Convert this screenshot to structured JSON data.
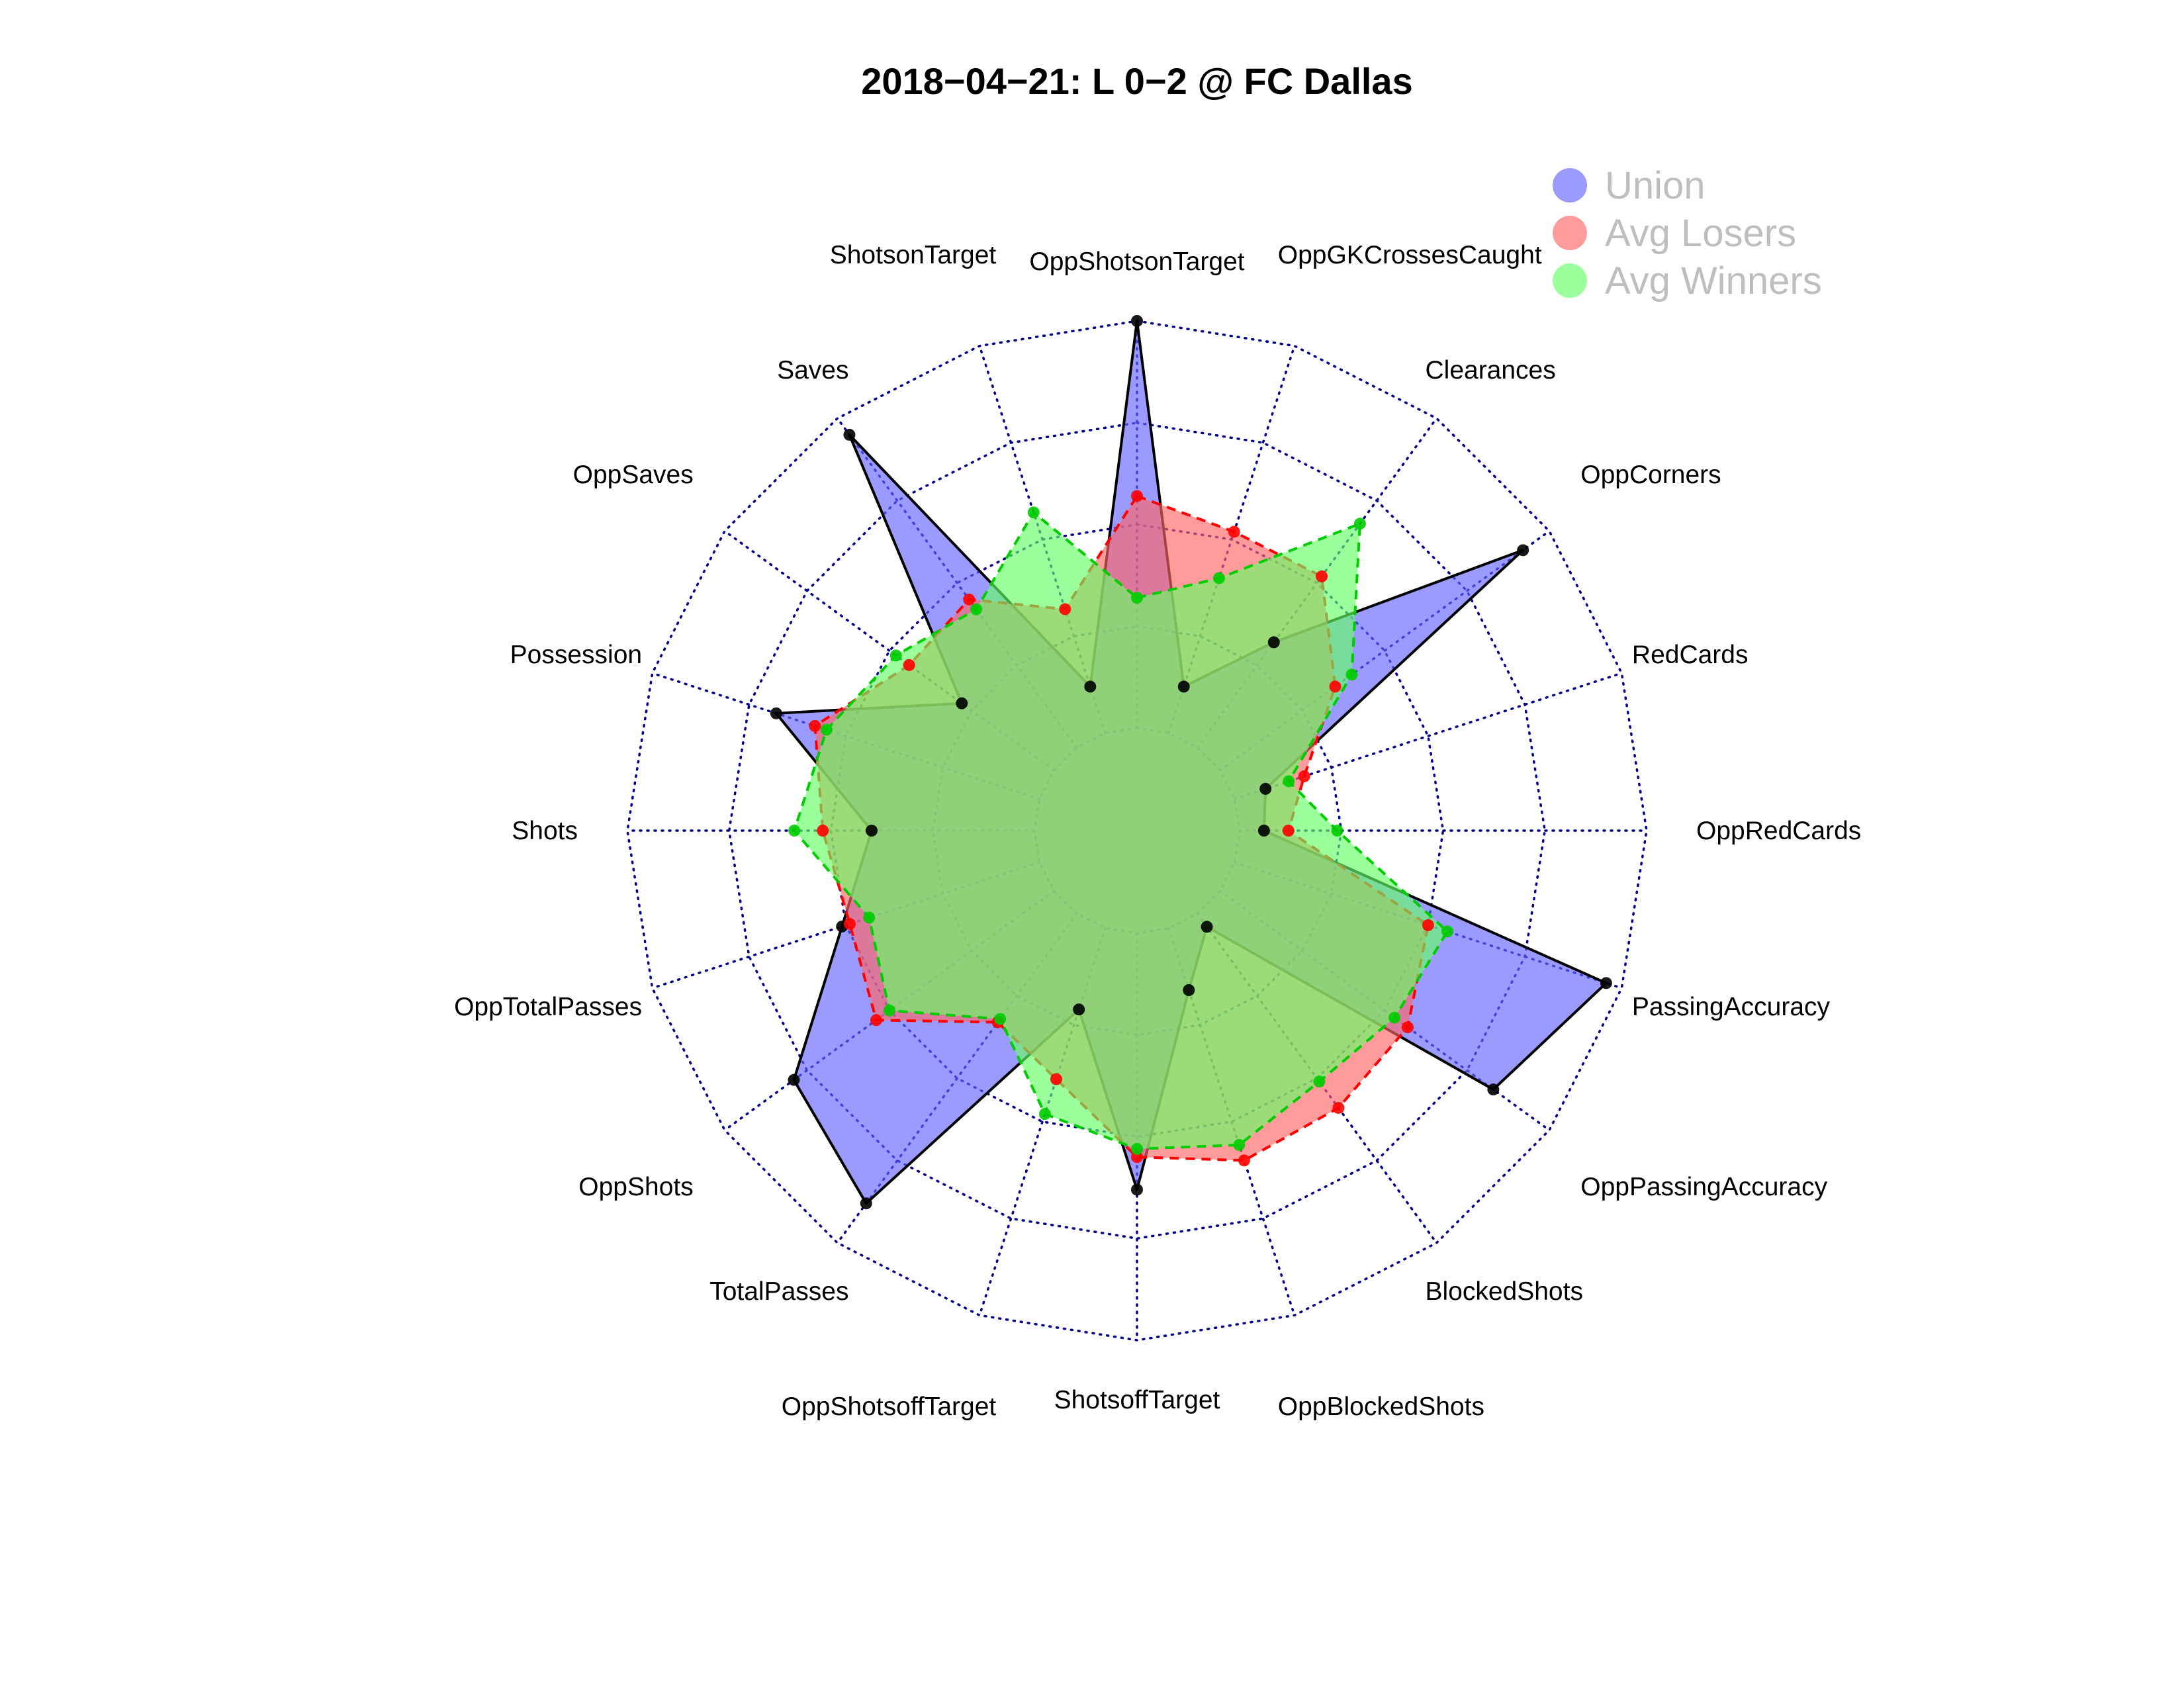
{
  "title": "2018−04−21:  L 0−2   @ FC Dallas",
  "chart_data": {
    "type": "radar",
    "title": "2018−04−21:  L 0−2   @ FC Dallas",
    "axes": [
      "OppShotsonTarget",
      "OppGKCrossesCaught",
      "Clearances",
      "OppCorners",
      "RedCards",
      "OppRedCards",
      "PassingAccuracy",
      "OppPassingAccuracy",
      "BlockedShots",
      "OppBlockedShots",
      "ShotsoffTarget",
      "OppShotsoffTarget",
      "TotalPasses",
      "OppShots",
      "OppTotalPasses",
      "Shots",
      "Possession",
      "OppSaves",
      "Saves",
      "ShotsonTarget"
    ],
    "value_range": [
      0,
      1
    ],
    "rings": 5,
    "grid": true,
    "legend_position": "top-right",
    "series": [
      {
        "name": "Union",
        "color": "#6666ff",
        "line_color": "#000000",
        "line_style": "solid",
        "values": [
          1.0,
          0.12,
          0.32,
          0.92,
          0.08,
          0.06,
          0.96,
          0.83,
          0.04,
          0.16,
          0.63,
          0.21,
          0.88,
          0.79,
          0.51,
          0.4,
          0.68,
          0.28,
          0.95,
          0.12
        ]
      },
      {
        "name": "Avg Losers",
        "color": "#ff6666",
        "line_color": "#ff0000",
        "line_style": "dashed",
        "values": [
          0.57,
          0.52,
          0.52,
          0.35,
          0.18,
          0.12,
          0.5,
          0.57,
          0.59,
          0.6,
          0.55,
          0.39,
          0.33,
          0.54,
          0.49,
          0.52,
          0.58,
          0.44,
          0.45,
          0.32
        ]
      },
      {
        "name": "Avg Winners",
        "color": "#66ff66",
        "line_color": "#00cc00",
        "line_style": "dashed",
        "values": [
          0.32,
          0.4,
          0.68,
          0.4,
          0.14,
          0.24,
          0.55,
          0.53,
          0.51,
          0.56,
          0.53,
          0.48,
          0.32,
          0.5,
          0.44,
          0.59,
          0.55,
          0.48,
          0.42,
          0.57
        ]
      }
    ],
    "legend": [
      "Union",
      "Avg Losers",
      "Avg Winners"
    ]
  }
}
